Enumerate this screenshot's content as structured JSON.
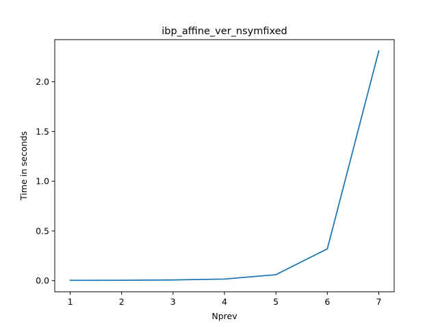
{
  "chart_data": {
    "type": "line",
    "title": "ibp_affine_ver_nsymfixed",
    "xlabel": "Nprev",
    "ylabel": "Time in seconds",
    "x": [
      1,
      2,
      3,
      4,
      5,
      6,
      7
    ],
    "series": [
      {
        "values": [
          0.003,
          0.004,
          0.007,
          0.016,
          0.06,
          0.32,
          2.31
        ],
        "color": "#1f77b4"
      }
    ],
    "xlim": [
      0.7,
      7.3
    ],
    "ylim": [
      -0.112,
      2.424
    ],
    "xticks": [
      1,
      2,
      3,
      4,
      5,
      6,
      7
    ],
    "yticks": [
      0.0,
      0.5,
      1.0,
      1.5,
      2.0
    ],
    "ytick_labels": [
      "0.0",
      "0.5",
      "1.0",
      "1.5",
      "2.0"
    ],
    "grid": false,
    "legend": "none"
  }
}
